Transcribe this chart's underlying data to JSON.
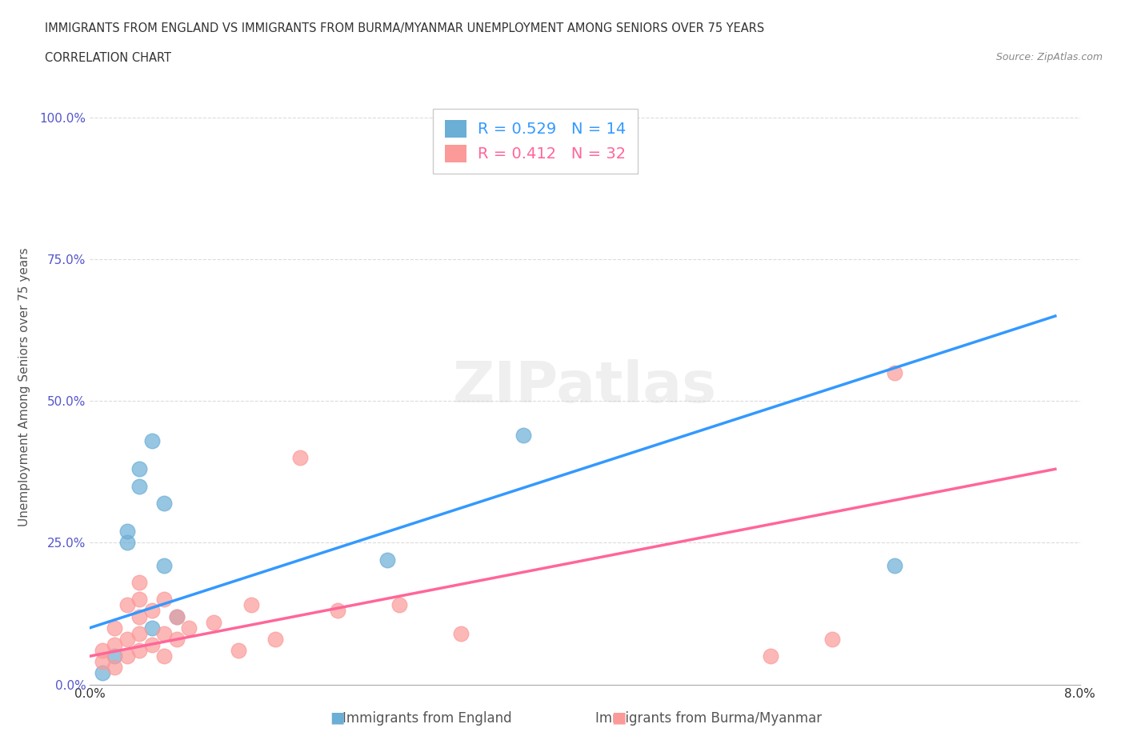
{
  "title_line1": "IMMIGRANTS FROM ENGLAND VS IMMIGRANTS FROM BURMA/MYANMAR UNEMPLOYMENT AMONG SENIORS OVER 75 YEARS",
  "title_line2": "CORRELATION CHART",
  "source": "Source: ZipAtlas.com",
  "xlabel": "",
  "ylabel": "Unemployment Among Seniors over 75 years",
  "xlim": [
    0.0,
    0.08
  ],
  "ylim": [
    0.0,
    1.05
  ],
  "xticks": [
    0.0,
    0.01,
    0.02,
    0.03,
    0.04,
    0.05,
    0.06,
    0.07,
    0.08
  ],
  "xticklabels": [
    "0.0%",
    "",
    "",
    "",
    "",
    "",
    "",
    "",
    "8.0%"
  ],
  "yticks": [
    0.0,
    0.25,
    0.5,
    0.75,
    1.0
  ],
  "yticklabels": [
    "0.0%",
    "25.0%",
    "50.0%",
    "75.0%",
    "100.0%"
  ],
  "england_color": "#6baed6",
  "burma_color": "#fb9a99",
  "england_R": 0.529,
  "england_N": 14,
  "burma_R": 0.412,
  "burma_N": 32,
  "england_scatter_x": [
    0.001,
    0.002,
    0.003,
    0.003,
    0.004,
    0.004,
    0.005,
    0.005,
    0.006,
    0.006,
    0.007,
    0.024,
    0.035,
    0.065
  ],
  "england_scatter_y": [
    0.02,
    0.05,
    0.25,
    0.27,
    0.35,
    0.38,
    0.43,
    0.1,
    0.21,
    0.32,
    0.12,
    0.22,
    0.44,
    0.21
  ],
  "burma_scatter_x": [
    0.001,
    0.001,
    0.002,
    0.002,
    0.002,
    0.003,
    0.003,
    0.003,
    0.004,
    0.004,
    0.004,
    0.004,
    0.004,
    0.005,
    0.005,
    0.006,
    0.006,
    0.006,
    0.007,
    0.007,
    0.008,
    0.01,
    0.012,
    0.013,
    0.015,
    0.017,
    0.02,
    0.025,
    0.03,
    0.055,
    0.06,
    0.065
  ],
  "burma_scatter_y": [
    0.04,
    0.06,
    0.03,
    0.07,
    0.1,
    0.05,
    0.08,
    0.14,
    0.06,
    0.09,
    0.12,
    0.15,
    0.18,
    0.07,
    0.13,
    0.05,
    0.09,
    0.15,
    0.08,
    0.12,
    0.1,
    0.11,
    0.06,
    0.14,
    0.08,
    0.4,
    0.13,
    0.14,
    0.09,
    0.05,
    0.08,
    0.55
  ],
  "england_line_x": [
    0.0,
    0.078
  ],
  "england_line_y": [
    0.1,
    0.65
  ],
  "burma_line_x": [
    0.0,
    0.078
  ],
  "burma_line_y": [
    0.05,
    0.38
  ],
  "watermark": "ZIPatlas",
  "background_color": "#ffffff",
  "grid_color": "#cccccc"
}
